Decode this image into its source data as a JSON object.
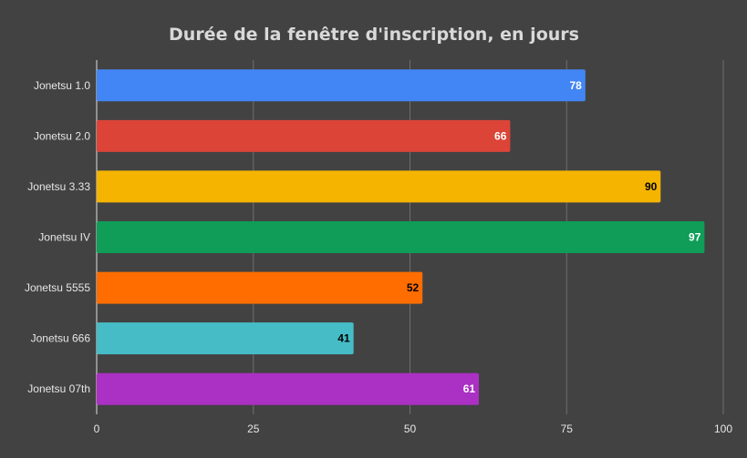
{
  "chart_data": {
    "type": "bar",
    "orientation": "horizontal",
    "title": "Durée de la fenêtre d'inscription, en jours",
    "categories": [
      "Jonetsu 1.0",
      "Jonetsu 2.0",
      "Jonetsu 3.33",
      "Jonetsu IV",
      "Jonetsu 5555",
      "Jonetsu 666",
      "Jonetsu 07th"
    ],
    "values": [
      78,
      66,
      90,
      97,
      52,
      41,
      61
    ],
    "colors": [
      "#4285f4",
      "#db4437",
      "#f4b400",
      "#0f9d58",
      "#ff6d00",
      "#46bdc6",
      "#ab30c4"
    ],
    "value_label_colors": [
      "#ffffff",
      "#ffffff",
      "#000000",
      "#ffffff",
      "#000000",
      "#000000",
      "#ffffff"
    ],
    "xlim": [
      0,
      100
    ],
    "xticks": [
      "0",
      "25",
      "50",
      "75",
      "100"
    ],
    "grid": true,
    "background": "#424242"
  }
}
